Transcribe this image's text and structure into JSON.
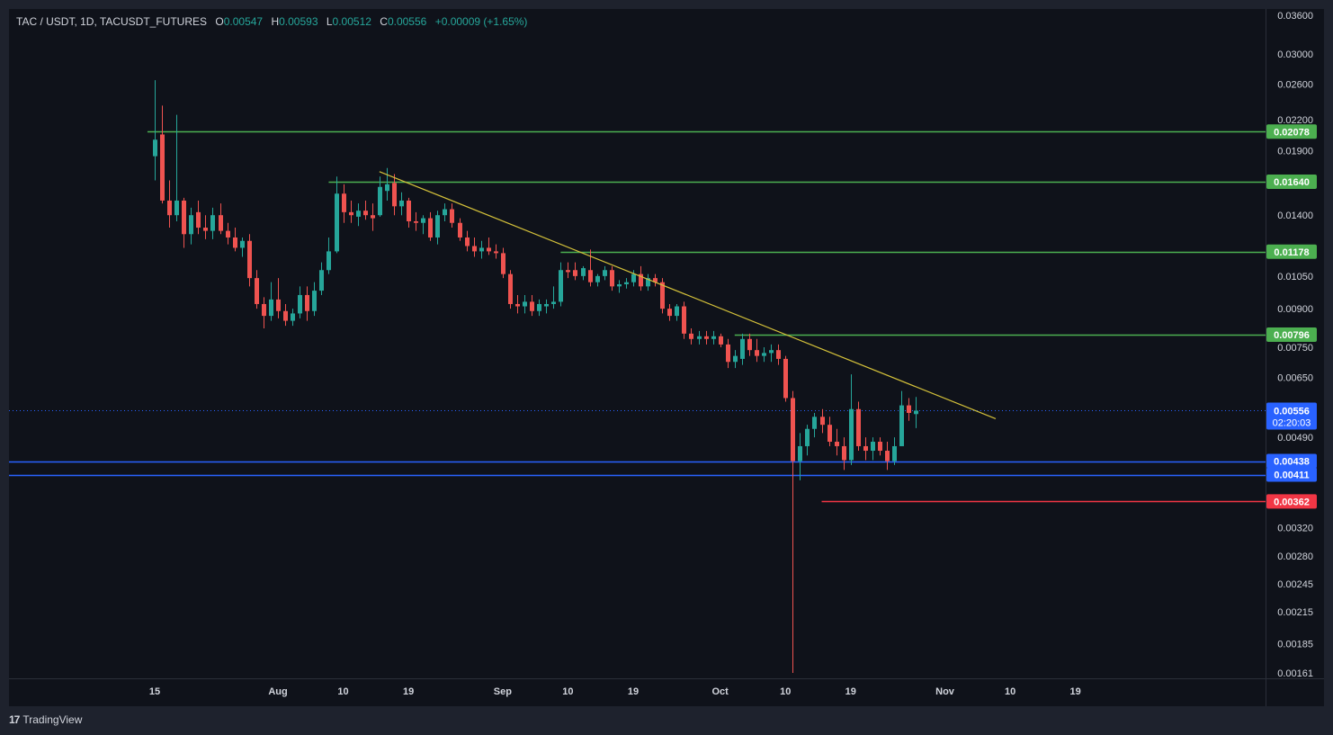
{
  "header": {
    "symbol": "TAC / USDT, 1D, TACUSDT_FUTURES",
    "o_label": "O",
    "o_value": "0.00547",
    "h_label": "H",
    "h_value": "0.00593",
    "l_label": "L",
    "l_value": "0.00512",
    "c_label": "C",
    "c_value": "0.00556",
    "change": "+0.00009 (+1.65%)"
  },
  "footer": {
    "logo": "17",
    "brand": "TradingView"
  },
  "colors": {
    "background": "#0f121a",
    "up": "#26a69a",
    "down": "#ef5350",
    "resistance": "#4caf50",
    "support": "#2962ff",
    "target": "#f23645",
    "trendline": "#d4c13a"
  },
  "price_scale": {
    "ticks": [
      "0.03600",
      "0.03000",
      "0.02600",
      "0.02200",
      "0.01900",
      "0.01400",
      "0.01050",
      "0.00900",
      "0.00750",
      "0.00650",
      "0.00490",
      "0.00320",
      "0.00280",
      "0.00245",
      "0.00215",
      "0.00185",
      "0.00161"
    ],
    "badges": [
      {
        "label": "0.02078",
        "value": 0.02078,
        "kind": "resistance"
      },
      {
        "label": "0.01640",
        "value": 0.0164,
        "kind": "resistance"
      },
      {
        "label": "0.01178",
        "value": 0.01178,
        "kind": "resistance"
      },
      {
        "label": "0.00796",
        "value": 0.00796,
        "kind": "resistance"
      },
      {
        "label": "0.00438",
        "value": 0.00438,
        "kind": "support"
      },
      {
        "label": "0.00411",
        "value": 0.00411,
        "kind": "support"
      },
      {
        "label": "0.00362",
        "value": 0.00362,
        "kind": "target"
      }
    ],
    "current_price": "0.00556",
    "countdown": "02:20:03"
  },
  "time_scale": {
    "ticks": [
      {
        "label": "15",
        "date": "2025-07-15"
      },
      {
        "label": "Aug",
        "date": "2025-08-01"
      },
      {
        "label": "10",
        "date": "2025-08-10"
      },
      {
        "label": "19",
        "date": "2025-08-19"
      },
      {
        "label": "Sep",
        "date": "2025-09-01"
      },
      {
        "label": "10",
        "date": "2025-09-10"
      },
      {
        "label": "19",
        "date": "2025-09-19"
      },
      {
        "label": "Oct",
        "date": "2025-10-01"
      },
      {
        "label": "10",
        "date": "2025-10-10"
      },
      {
        "label": "19",
        "date": "2025-10-19"
      },
      {
        "label": "Nov",
        "date": "2025-11-01"
      },
      {
        "label": "10",
        "date": "2025-11-10"
      },
      {
        "label": "19",
        "date": "2025-11-19"
      }
    ]
  },
  "chart_data": {
    "type": "candlestick",
    "interval": "1D",
    "y_scale": "log",
    "ylim": [
      0.00161,
      0.036
    ],
    "xlim": [
      "2025-07-15",
      "2025-11-24"
    ],
    "grid": false,
    "candles": [
      {
        "date": "2025-07-15",
        "o": 0.0185,
        "h": 0.0265,
        "l": 0.0165,
        "c": 0.02
      },
      {
        "date": "2025-07-16",
        "o": 0.0205,
        "h": 0.0235,
        "l": 0.0148,
        "c": 0.015
      },
      {
        "date": "2025-07-17",
        "o": 0.015,
        "h": 0.0165,
        "l": 0.0132,
        "c": 0.014
      },
      {
        "date": "2025-07-18",
        "o": 0.014,
        "h": 0.0225,
        "l": 0.0136,
        "c": 0.015
      },
      {
        "date": "2025-07-19",
        "o": 0.015,
        "h": 0.0152,
        "l": 0.012,
        "c": 0.0128
      },
      {
        "date": "2025-07-20",
        "o": 0.0128,
        "h": 0.0145,
        "l": 0.0122,
        "c": 0.014
      },
      {
        "date": "2025-07-21",
        "o": 0.0142,
        "h": 0.015,
        "l": 0.0128,
        "c": 0.0132
      },
      {
        "date": "2025-07-22",
        "o": 0.0132,
        "h": 0.014,
        "l": 0.0125,
        "c": 0.013
      },
      {
        "date": "2025-07-23",
        "o": 0.013,
        "h": 0.0145,
        "l": 0.0125,
        "c": 0.014
      },
      {
        "date": "2025-07-24",
        "o": 0.014,
        "h": 0.0148,
        "l": 0.0128,
        "c": 0.013
      },
      {
        "date": "2025-07-25",
        "o": 0.013,
        "h": 0.0135,
        "l": 0.0122,
        "c": 0.0126
      },
      {
        "date": "2025-07-26",
        "o": 0.0126,
        "h": 0.0132,
        "l": 0.0118,
        "c": 0.012
      },
      {
        "date": "2025-07-27",
        "o": 0.012,
        "h": 0.0126,
        "l": 0.0115,
        "c": 0.0124
      },
      {
        "date": "2025-07-28",
        "o": 0.0124,
        "h": 0.0128,
        "l": 0.01,
        "c": 0.0104
      },
      {
        "date": "2025-07-29",
        "o": 0.0104,
        "h": 0.0108,
        "l": 0.009,
        "c": 0.0092
      },
      {
        "date": "2025-07-30",
        "o": 0.0092,
        "h": 0.0095,
        "l": 0.0082,
        "c": 0.0087
      },
      {
        "date": "2025-07-31",
        "o": 0.0087,
        "h": 0.0102,
        "l": 0.0085,
        "c": 0.0094
      },
      {
        "date": "2025-08-01",
        "o": 0.0094,
        "h": 0.0104,
        "l": 0.0086,
        "c": 0.0089
      },
      {
        "date": "2025-08-02",
        "o": 0.0089,
        "h": 0.0092,
        "l": 0.0083,
        "c": 0.0085
      },
      {
        "date": "2025-08-03",
        "o": 0.0085,
        "h": 0.009,
        "l": 0.0083,
        "c": 0.0088
      },
      {
        "date": "2025-08-04",
        "o": 0.0088,
        "h": 0.01,
        "l": 0.0086,
        "c": 0.0096
      },
      {
        "date": "2025-08-05",
        "o": 0.0096,
        "h": 0.01,
        "l": 0.0085,
        "c": 0.0089
      },
      {
        "date": "2025-08-06",
        "o": 0.0089,
        "h": 0.0102,
        "l": 0.0087,
        "c": 0.0098
      },
      {
        "date": "2025-08-07",
        "o": 0.0098,
        "h": 0.0112,
        "l": 0.0096,
        "c": 0.0108
      },
      {
        "date": "2025-08-08",
        "o": 0.0108,
        "h": 0.0126,
        "l": 0.0106,
        "c": 0.0118
      },
      {
        "date": "2025-08-09",
        "o": 0.0118,
        "h": 0.0168,
        "l": 0.0117,
        "c": 0.0155
      },
      {
        "date": "2025-08-10",
        "o": 0.0155,
        "h": 0.0162,
        "l": 0.0135,
        "c": 0.0142
      },
      {
        "date": "2025-08-11",
        "o": 0.0142,
        "h": 0.015,
        "l": 0.0135,
        "c": 0.014
      },
      {
        "date": "2025-08-12",
        "o": 0.0139,
        "h": 0.0148,
        "l": 0.0133,
        "c": 0.0143
      },
      {
        "date": "2025-08-13",
        "o": 0.0143,
        "h": 0.015,
        "l": 0.0137,
        "c": 0.014
      },
      {
        "date": "2025-08-14",
        "o": 0.014,
        "h": 0.0148,
        "l": 0.013,
        "c": 0.0138
      },
      {
        "date": "2025-08-15",
        "o": 0.014,
        "h": 0.0168,
        "l": 0.0139,
        "c": 0.016
      },
      {
        "date": "2025-08-16",
        "o": 0.0157,
        "h": 0.0175,
        "l": 0.015,
        "c": 0.0162
      },
      {
        "date": "2025-08-17",
        "o": 0.0163,
        "h": 0.017,
        "l": 0.014,
        "c": 0.0146
      },
      {
        "date": "2025-08-18",
        "o": 0.0146,
        "h": 0.0156,
        "l": 0.014,
        "c": 0.015
      },
      {
        "date": "2025-08-19",
        "o": 0.015,
        "h": 0.0152,
        "l": 0.0132,
        "c": 0.0136
      },
      {
        "date": "2025-08-20",
        "o": 0.0136,
        "h": 0.0142,
        "l": 0.013,
        "c": 0.0135
      },
      {
        "date": "2025-08-21",
        "o": 0.0135,
        "h": 0.014,
        "l": 0.0128,
        "c": 0.0138
      },
      {
        "date": "2025-08-22",
        "o": 0.0138,
        "h": 0.0142,
        "l": 0.0124,
        "c": 0.0126
      },
      {
        "date": "2025-08-23",
        "o": 0.0126,
        "h": 0.0143,
        "l": 0.0122,
        "c": 0.014
      },
      {
        "date": "2025-08-24",
        "o": 0.014,
        "h": 0.0148,
        "l": 0.0136,
        "c": 0.0144
      },
      {
        "date": "2025-08-25",
        "o": 0.0144,
        "h": 0.0148,
        "l": 0.0132,
        "c": 0.0135
      },
      {
        "date": "2025-08-26",
        "o": 0.0135,
        "h": 0.0138,
        "l": 0.0124,
        "c": 0.0126
      },
      {
        "date": "2025-08-27",
        "o": 0.0126,
        "h": 0.013,
        "l": 0.0118,
        "c": 0.0121
      },
      {
        "date": "2025-08-28",
        "o": 0.0121,
        "h": 0.0126,
        "l": 0.0115,
        "c": 0.0118
      },
      {
        "date": "2025-08-29",
        "o": 0.0118,
        "h": 0.0124,
        "l": 0.0114,
        "c": 0.012
      },
      {
        "date": "2025-08-30",
        "o": 0.012,
        "h": 0.0126,
        "l": 0.0116,
        "c": 0.0118
      },
      {
        "date": "2025-08-31",
        "o": 0.0118,
        "h": 0.0122,
        "l": 0.0114,
        "c": 0.0117
      },
      {
        "date": "2025-09-01",
        "o": 0.0117,
        "h": 0.012,
        "l": 0.0104,
        "c": 0.0106
      },
      {
        "date": "2025-09-02",
        "o": 0.0106,
        "h": 0.0108,
        "l": 0.009,
        "c": 0.0092
      },
      {
        "date": "2025-09-03",
        "o": 0.0092,
        "h": 0.0096,
        "l": 0.0088,
        "c": 0.0091
      },
      {
        "date": "2025-09-04",
        "o": 0.0091,
        "h": 0.0096,
        "l": 0.0088,
        "c": 0.0093
      },
      {
        "date": "2025-09-05",
        "o": 0.0093,
        "h": 0.0096,
        "l": 0.0087,
        "c": 0.0089
      },
      {
        "date": "2025-09-06",
        "o": 0.0089,
        "h": 0.0094,
        "l": 0.0087,
        "c": 0.0092
      },
      {
        "date": "2025-09-07",
        "o": 0.0091,
        "h": 0.0094,
        "l": 0.0088,
        "c": 0.0092
      },
      {
        "date": "2025-09-08",
        "o": 0.0092,
        "h": 0.01,
        "l": 0.009,
        "c": 0.0093
      },
      {
        "date": "2025-09-09",
        "o": 0.0093,
        "h": 0.0112,
        "l": 0.0091,
        "c": 0.0108
      },
      {
        "date": "2025-09-10",
        "o": 0.0108,
        "h": 0.0112,
        "l": 0.0104,
        "c": 0.0107
      },
      {
        "date": "2025-09-11",
        "o": 0.0108,
        "h": 0.0112,
        "l": 0.0103,
        "c": 0.0105
      },
      {
        "date": "2025-09-12",
        "o": 0.0105,
        "h": 0.011,
        "l": 0.0103,
        "c": 0.0109
      },
      {
        "date": "2025-09-13",
        "o": 0.0108,
        "h": 0.0119,
        "l": 0.01,
        "c": 0.0102
      },
      {
        "date": "2025-09-14",
        "o": 0.0102,
        "h": 0.0106,
        "l": 0.01,
        "c": 0.0105
      },
      {
        "date": "2025-09-15",
        "o": 0.0105,
        "h": 0.011,
        "l": 0.0103,
        "c": 0.0108
      },
      {
        "date": "2025-09-16",
        "o": 0.0108,
        "h": 0.011,
        "l": 0.0098,
        "c": 0.01
      },
      {
        "date": "2025-09-17",
        "o": 0.01,
        "h": 0.0103,
        "l": 0.0097,
        "c": 0.0101
      },
      {
        "date": "2025-09-18",
        "o": 0.0101,
        "h": 0.0104,
        "l": 0.0099,
        "c": 0.0102
      },
      {
        "date": "2025-09-19",
        "o": 0.0102,
        "h": 0.0108,
        "l": 0.01,
        "c": 0.0106
      },
      {
        "date": "2025-09-20",
        "o": 0.0106,
        "h": 0.011,
        "l": 0.0098,
        "c": 0.01
      },
      {
        "date": "2025-09-21",
        "o": 0.01,
        "h": 0.0106,
        "l": 0.0098,
        "c": 0.0104
      },
      {
        "date": "2025-09-22",
        "o": 0.0104,
        "h": 0.0106,
        "l": 0.01,
        "c": 0.0102
      },
      {
        "date": "2025-09-23",
        "o": 0.0102,
        "h": 0.0104,
        "l": 0.0088,
        "c": 0.009
      },
      {
        "date": "2025-09-24",
        "o": 0.009,
        "h": 0.0092,
        "l": 0.0085,
        "c": 0.0087
      },
      {
        "date": "2025-09-25",
        "o": 0.0087,
        "h": 0.0092,
        "l": 0.0085,
        "c": 0.0091
      },
      {
        "date": "2025-09-26",
        "o": 0.0091,
        "h": 0.0093,
        "l": 0.0078,
        "c": 0.008
      },
      {
        "date": "2025-09-27",
        "o": 0.008,
        "h": 0.0082,
        "l": 0.0076,
        "c": 0.0078
      },
      {
        "date": "2025-09-28",
        "o": 0.0078,
        "h": 0.0081,
        "l": 0.0076,
        "c": 0.0079
      },
      {
        "date": "2025-09-29",
        "o": 0.0079,
        "h": 0.0081,
        "l": 0.0076,
        "c": 0.0078
      },
      {
        "date": "2025-09-30",
        "o": 0.0078,
        "h": 0.0081,
        "l": 0.0076,
        "c": 0.0079
      },
      {
        "date": "2025-10-01",
        "o": 0.0079,
        "h": 0.008,
        "l": 0.0075,
        "c": 0.0076
      },
      {
        "date": "2025-10-02",
        "o": 0.0076,
        "h": 0.0078,
        "l": 0.0068,
        "c": 0.007
      },
      {
        "date": "2025-10-03",
        "o": 0.007,
        "h": 0.0074,
        "l": 0.0068,
        "c": 0.0072
      },
      {
        "date": "2025-10-04",
        "o": 0.0071,
        "h": 0.008,
        "l": 0.0069,
        "c": 0.0078
      },
      {
        "date": "2025-10-05",
        "o": 0.0078,
        "h": 0.008,
        "l": 0.0072,
        "c": 0.0074
      },
      {
        "date": "2025-10-06",
        "o": 0.0074,
        "h": 0.0078,
        "l": 0.007,
        "c": 0.0072
      },
      {
        "date": "2025-10-07",
        "o": 0.0072,
        "h": 0.0075,
        "l": 0.007,
        "c": 0.0073
      },
      {
        "date": "2025-10-08",
        "o": 0.0073,
        "h": 0.0076,
        "l": 0.007,
        "c": 0.0074
      },
      {
        "date": "2025-10-09",
        "o": 0.0074,
        "h": 0.0076,
        "l": 0.0069,
        "c": 0.0071
      },
      {
        "date": "2025-10-10",
        "o": 0.0071,
        "h": 0.0072,
        "l": 0.0058,
        "c": 0.0059
      },
      {
        "date": "2025-10-11",
        "o": 0.0059,
        "h": 0.0061,
        "l": 0.00161,
        "c": 0.00438
      },
      {
        "date": "2025-10-12",
        "o": 0.00438,
        "h": 0.005,
        "l": 0.004,
        "c": 0.0047
      },
      {
        "date": "2025-10-13",
        "o": 0.0047,
        "h": 0.0052,
        "l": 0.0045,
        "c": 0.0051
      },
      {
        "date": "2025-10-14",
        "o": 0.0051,
        "h": 0.0055,
        "l": 0.0049,
        "c": 0.0054
      },
      {
        "date": "2025-10-15",
        "o": 0.0054,
        "h": 0.0056,
        "l": 0.005,
        "c": 0.0052
      },
      {
        "date": "2025-10-16",
        "o": 0.0052,
        "h": 0.0054,
        "l": 0.0047,
        "c": 0.0048
      },
      {
        "date": "2025-10-17",
        "o": 0.0048,
        "h": 0.0051,
        "l": 0.0045,
        "c": 0.0047
      },
      {
        "date": "2025-10-18",
        "o": 0.0047,
        "h": 0.0049,
        "l": 0.0042,
        "c": 0.0044
      },
      {
        "date": "2025-10-19",
        "o": 0.0044,
        "h": 0.0066,
        "l": 0.0043,
        "c": 0.0056
      },
      {
        "date": "2025-10-20",
        "o": 0.0056,
        "h": 0.0058,
        "l": 0.0046,
        "c": 0.0047
      },
      {
        "date": "2025-10-21",
        "o": 0.0047,
        "h": 0.0049,
        "l": 0.0044,
        "c": 0.0046
      },
      {
        "date": "2025-10-22",
        "o": 0.0046,
        "h": 0.0049,
        "l": 0.0044,
        "c": 0.0048
      },
      {
        "date": "2025-10-23",
        "o": 0.0048,
        "h": 0.0049,
        "l": 0.0045,
        "c": 0.0046
      },
      {
        "date": "2025-10-24",
        "o": 0.0046,
        "h": 0.0048,
        "l": 0.0042,
        "c": 0.00438
      },
      {
        "date": "2025-10-25",
        "o": 0.00438,
        "h": 0.0049,
        "l": 0.0043,
        "c": 0.0047
      },
      {
        "date": "2025-10-26",
        "o": 0.0047,
        "h": 0.0061,
        "l": 0.0047,
        "c": 0.0057
      },
      {
        "date": "2025-10-27",
        "o": 0.0057,
        "h": 0.0059,
        "l": 0.0053,
        "c": 0.0055
      },
      {
        "date": "2025-10-28",
        "o": 0.00547,
        "h": 0.00593,
        "l": 0.00512,
        "c": 0.00556
      }
    ],
    "horizontal_levels": [
      {
        "value": 0.02078,
        "from": "2025-07-14",
        "kind": "resistance"
      },
      {
        "value": 0.0164,
        "from": "2025-08-08",
        "kind": "resistance"
      },
      {
        "value": 0.01178,
        "from": "2025-09-09",
        "kind": "resistance"
      },
      {
        "value": 0.00796,
        "from": "2025-10-03",
        "kind": "resistance"
      },
      {
        "value": 0.00438,
        "from": "2025-06-01",
        "kind": "support"
      },
      {
        "value": 0.00411,
        "from": "2025-06-01",
        "kind": "support"
      },
      {
        "value": 0.00362,
        "from": "2025-10-15",
        "kind": "target"
      }
    ],
    "trendline": {
      "from": {
        "date": "2025-08-15",
        "value": 0.0172
      },
      "to": {
        "date": "2025-11-08",
        "value": 0.00535
      }
    }
  }
}
